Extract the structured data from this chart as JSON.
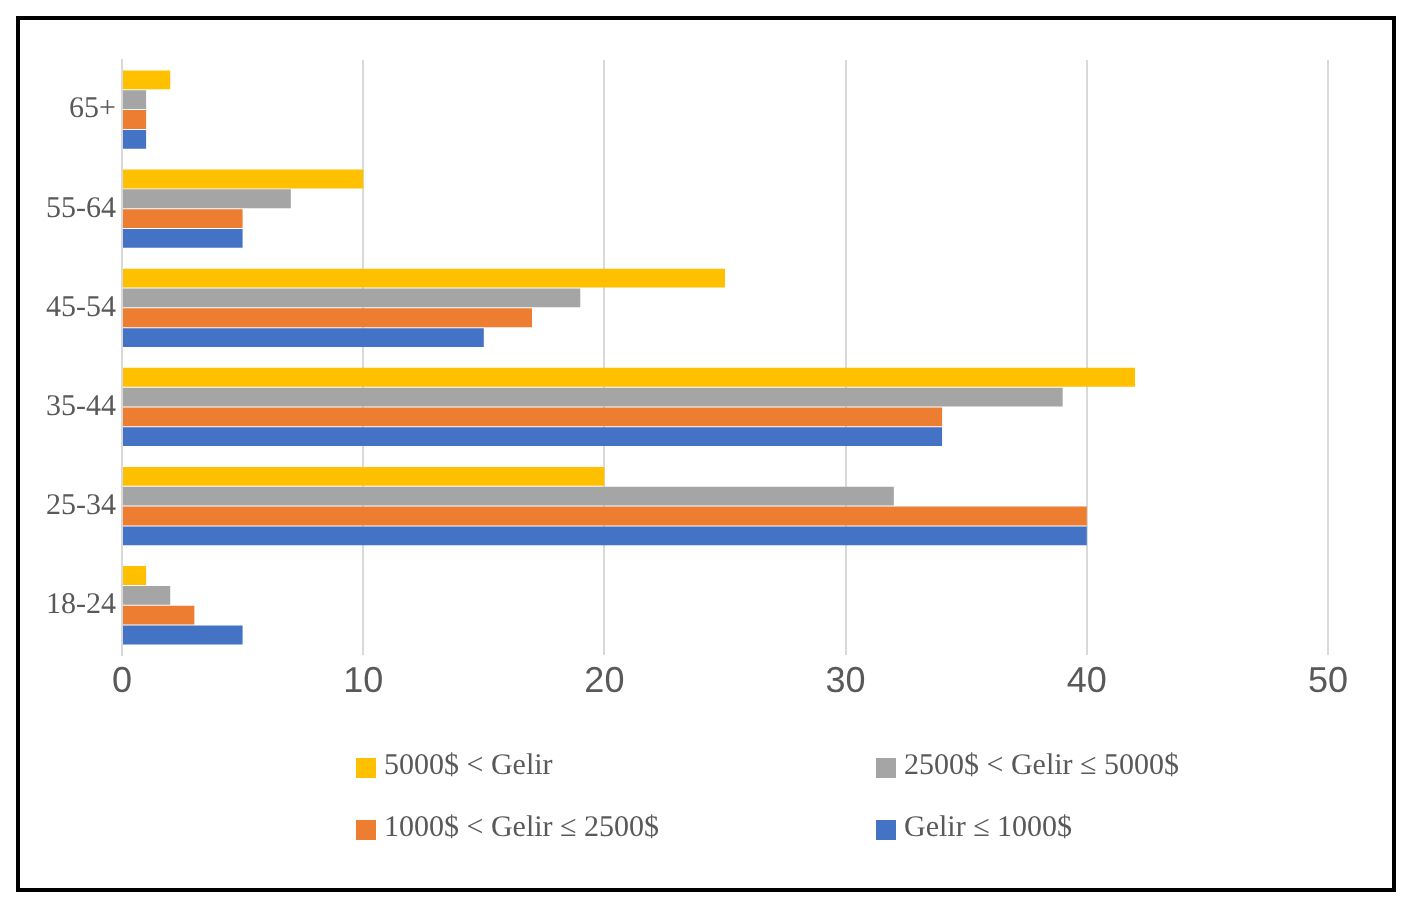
{
  "chart_data": {
    "type": "bar",
    "orientation": "horizontal",
    "categories": [
      "65+",
      "55-64",
      "45-54",
      "35-44",
      "25-34",
      "18-24"
    ],
    "series": [
      {
        "name": "5000$ < Gelir",
        "color": "#ffc000",
        "values": [
          2,
          10,
          25,
          42,
          20,
          1
        ]
      },
      {
        "name": "2500$ < Gelir ≤ 5000$",
        "color": "#a5a5a5",
        "values": [
          1,
          7,
          19,
          39,
          32,
          2
        ]
      },
      {
        "name": "1000$ < Gelir ≤ 2500$",
        "color": "#ed7d31",
        "values": [
          1,
          5,
          17,
          34,
          40,
          3
        ]
      },
      {
        "name": "Gelir ≤ 1000$",
        "color": "#4472c4",
        "values": [
          1,
          5,
          15,
          34,
          40,
          5
        ]
      }
    ],
    "xlim": [
      0,
      50
    ],
    "xticks": [
      0,
      10,
      20,
      30,
      40,
      50
    ],
    "grid": "x",
    "legend": "bottom"
  }
}
